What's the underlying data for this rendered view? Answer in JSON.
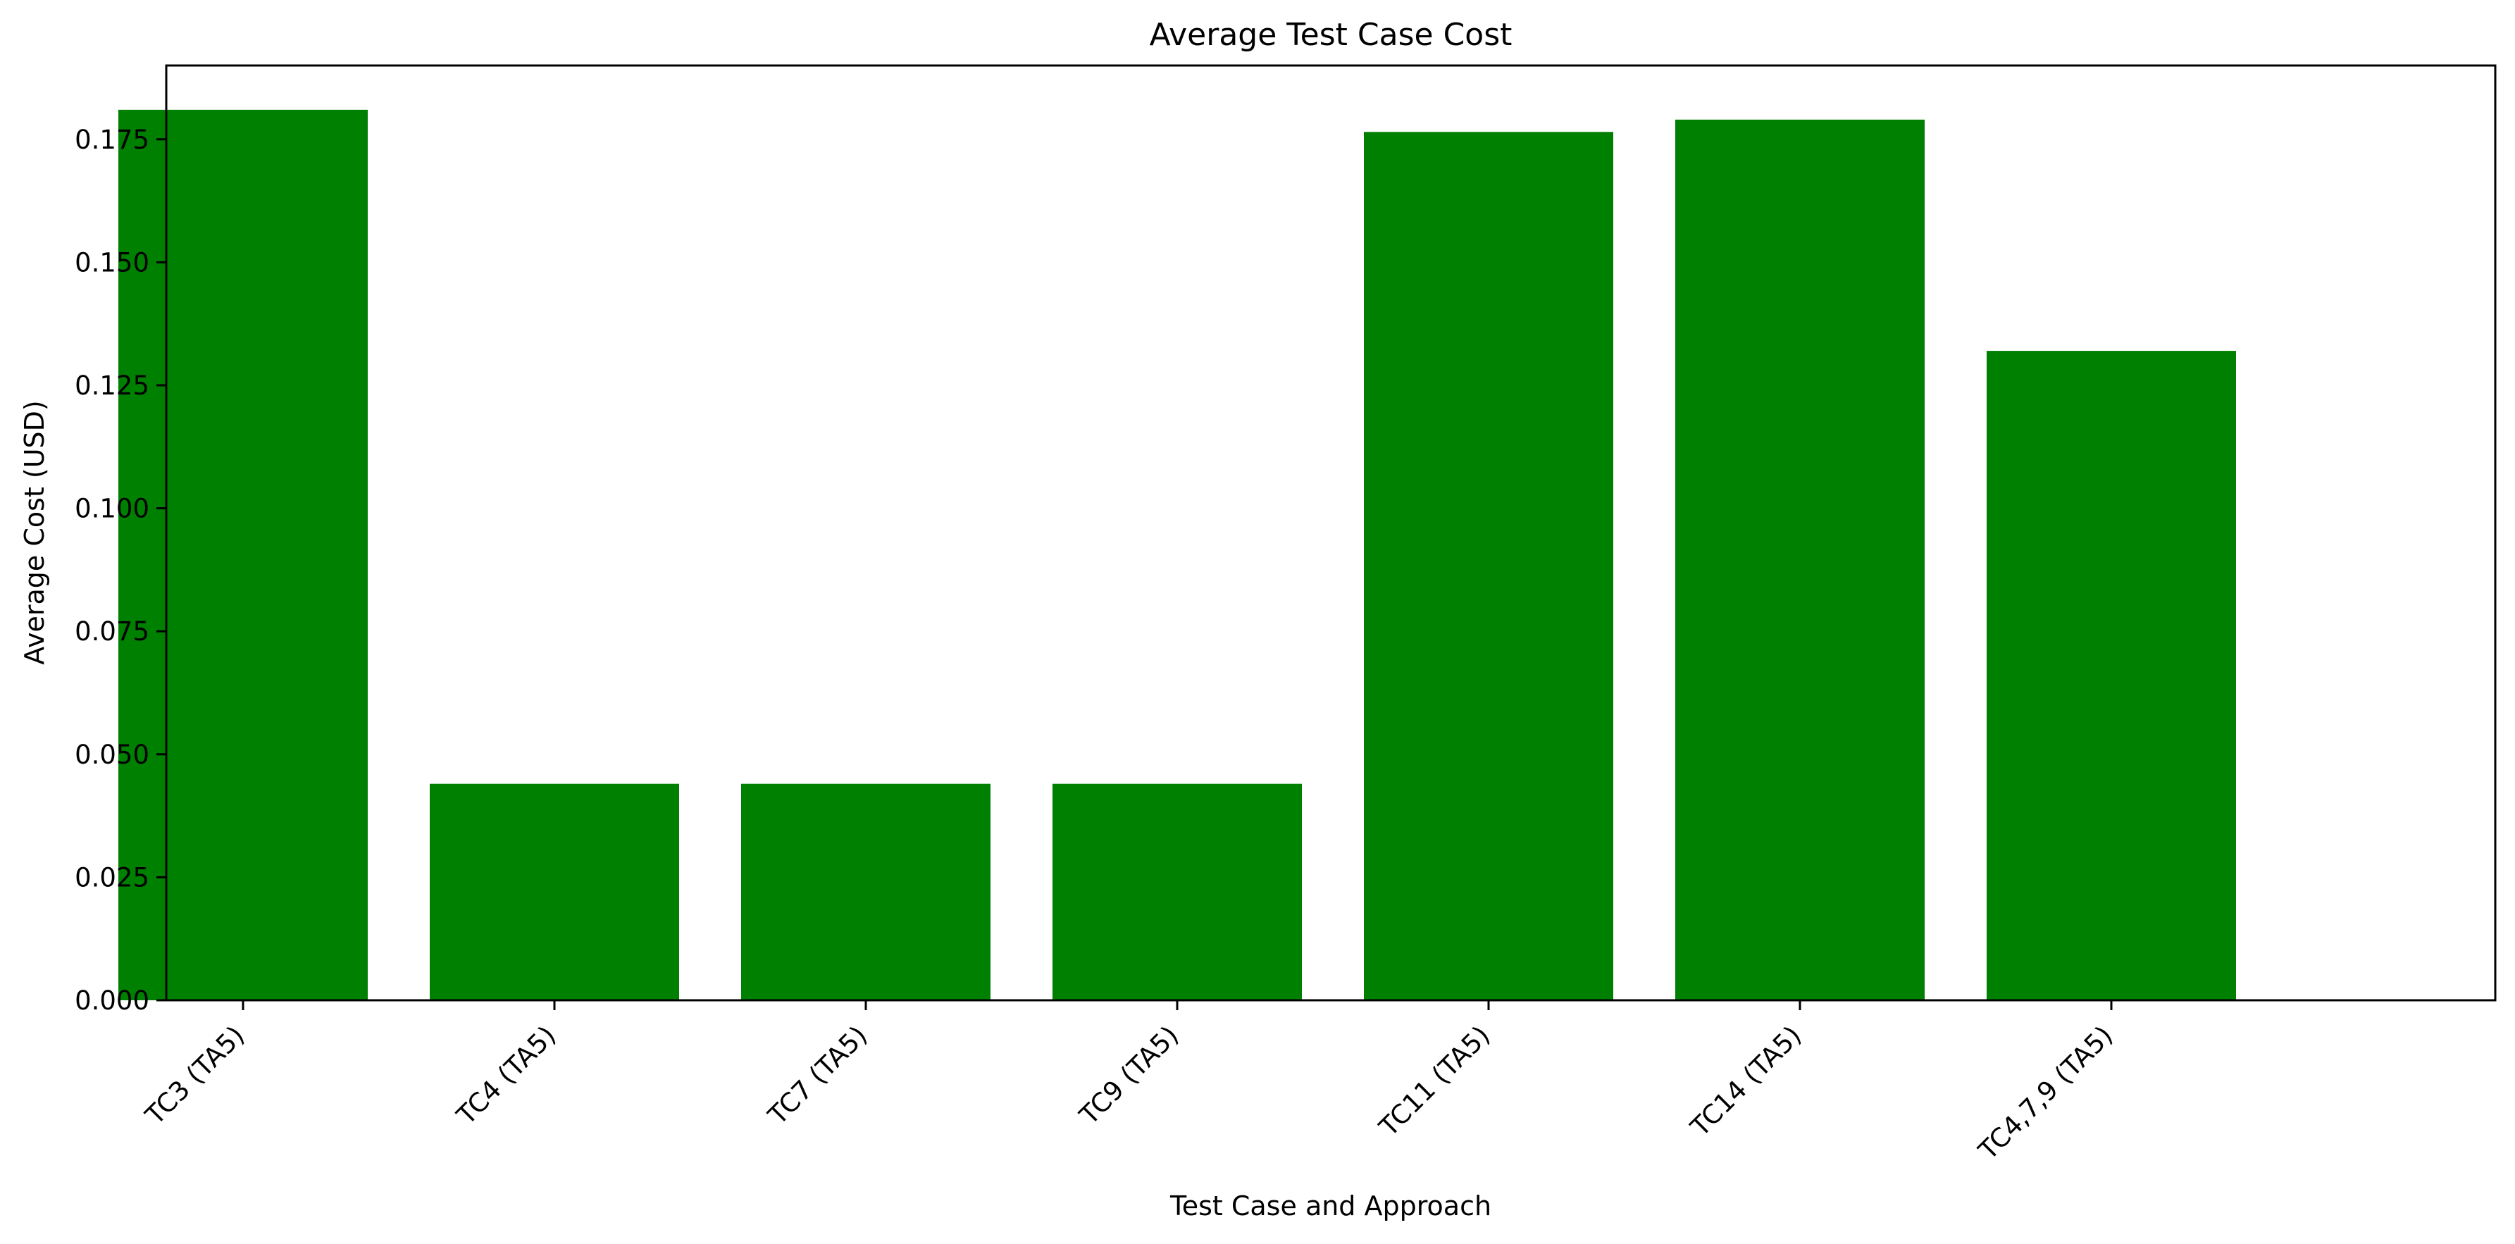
{
  "chart_data": {
    "type": "bar",
    "title": "Average Test Case Cost",
    "xlabel": "Test Case and Approach",
    "ylabel": "Average Cost (USD)",
    "categories": [
      "TC3 (TA5)",
      "TC4 (TA5)",
      "TC7 (TA5)",
      "TC9 (TA5)",
      "TC11 (TA5)",
      "TC14 (TA5)",
      "TC4,7,9 (TA5)"
    ],
    "values": [
      0.181,
      0.044,
      0.044,
      0.044,
      0.1765,
      0.179,
      0.132
    ],
    "yticks": [
      "0.000",
      "0.025",
      "0.050",
      "0.075",
      "0.100",
      "0.125",
      "0.150",
      "0.175"
    ],
    "ylim": [
      0,
      0.19
    ],
    "bar_color": "#008000",
    "grid": false,
    "legend": "none"
  }
}
